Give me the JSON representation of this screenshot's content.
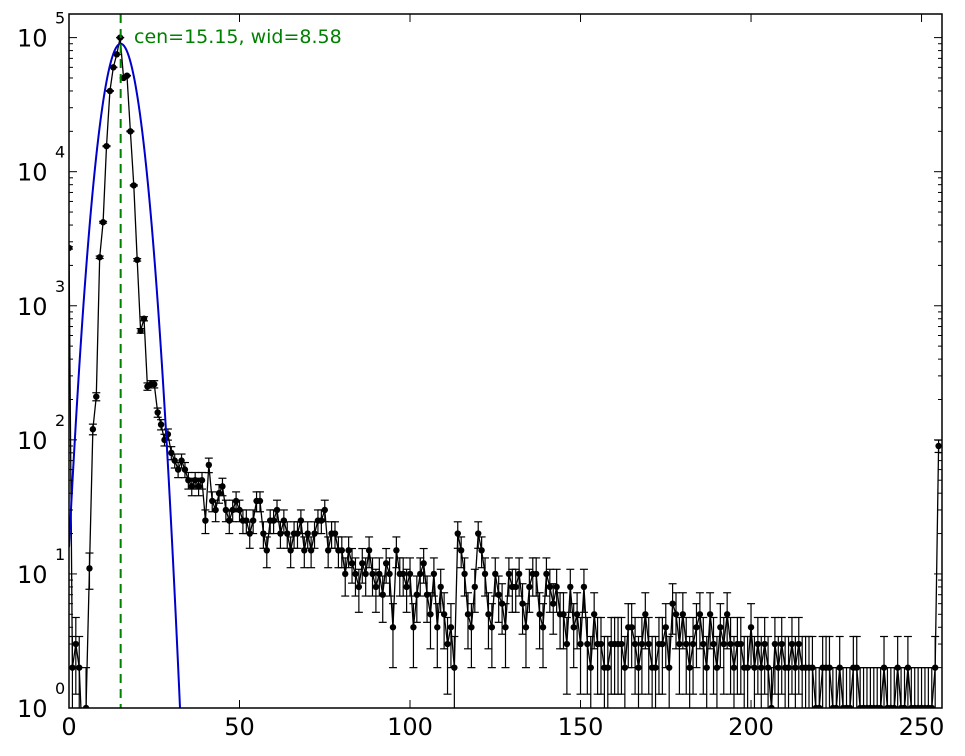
{
  "chart_data": {
    "type": "scatter",
    "title": "",
    "xlabel": "",
    "ylabel": "",
    "xlim": [
      0,
      256
    ],
    "ylim": [
      1,
      150000
    ],
    "y_scale": "log",
    "grid": false,
    "legend": "none",
    "x_ticks": [
      0,
      50,
      100,
      150,
      200,
      250
    ],
    "x_tick_labels": [
      "0",
      "50",
      "100",
      "150",
      "200",
      "250"
    ],
    "y_ticks": [
      1,
      10,
      100,
      1000,
      10000,
      100000
    ],
    "y_tick_labels": [
      {
        "base": "10",
        "exp": "0"
      },
      {
        "base": "10",
        "exp": "1"
      },
      {
        "base": "10",
        "exp": "2"
      },
      {
        "base": "10",
        "exp": "3"
      },
      {
        "base": "10",
        "exp": "4"
      },
      {
        "base": "10",
        "exp": "5"
      }
    ],
    "annotation": {
      "text": "cen=15.15, wid=8.58",
      "color": "#008000"
    },
    "center_line": {
      "x": 15.15,
      "color": "#008000",
      "style": "dashed"
    },
    "series": [
      {
        "kind": "histogram-with-errorbars",
        "color": "#000000",
        "x": [
          0,
          1,
          2,
          3,
          4,
          5,
          6,
          7,
          8,
          9,
          10,
          11,
          12,
          13,
          14,
          15,
          16,
          17,
          18,
          19,
          20,
          21,
          22,
          23,
          24,
          25,
          26,
          27,
          28,
          29,
          30,
          31,
          32,
          33,
          34,
          35,
          36,
          37,
          38,
          39,
          40,
          41,
          42,
          43,
          44,
          45,
          46,
          47,
          48,
          49,
          50,
          51,
          52,
          53,
          54,
          55,
          56,
          57,
          58,
          59,
          60,
          61,
          62,
          63,
          64,
          65,
          66,
          67,
          68,
          69,
          70,
          71,
          72,
          73,
          74,
          75,
          76,
          77,
          78,
          79,
          80,
          81,
          82,
          83,
          84,
          85,
          86,
          87,
          88,
          89,
          90,
          91,
          92,
          93,
          94,
          95,
          96,
          97,
          98,
          99,
          100,
          101,
          102,
          103,
          104,
          105,
          106,
          107,
          108,
          109,
          110,
          111,
          112,
          113,
          114,
          115,
          116,
          117,
          118,
          119,
          120,
          121,
          122,
          123,
          124,
          125,
          126,
          127,
          128,
          129,
          130,
          131,
          132,
          133,
          134,
          135,
          136,
          137,
          138,
          139,
          140,
          141,
          142,
          143,
          144,
          145,
          146,
          147,
          148,
          149,
          150,
          151,
          152,
          153,
          154,
          155,
          156,
          157,
          158,
          159,
          160,
          161,
          162,
          163,
          164,
          165,
          166,
          167,
          168,
          169,
          170,
          171,
          172,
          173,
          174,
          175,
          176,
          177,
          178,
          179,
          180,
          181,
          182,
          183,
          184,
          185,
          186,
          187,
          188,
          189,
          190,
          191,
          192,
          193,
          194,
          195,
          196,
          197,
          198,
          199,
          200,
          201,
          202,
          203,
          204,
          205,
          206,
          207,
          208,
          209,
          210,
          211,
          212,
          213,
          214,
          215,
          216,
          217,
          218,
          219,
          220,
          221,
          222,
          223,
          224,
          225,
          226,
          227,
          228,
          229,
          230,
          231,
          232,
          233,
          234,
          235,
          236,
          237,
          238,
          239,
          240,
          241,
          242,
          243,
          244,
          245,
          246,
          247,
          248,
          249,
          250,
          251,
          252,
          253,
          254,
          255
        ],
        "y": [
          2700,
          2,
          3,
          2,
          0,
          1,
          11,
          120,
          210,
          2300,
          4200,
          15500,
          40000,
          60000,
          75000,
          100000,
          50000,
          52000,
          20000,
          7900,
          2200,
          650,
          800,
          250,
          260,
          260,
          160,
          130,
          100,
          110,
          80,
          70,
          60,
          70,
          60,
          50,
          45,
          50,
          45,
          50,
          25,
          65,
          35,
          30,
          40,
          45,
          30,
          25,
          30,
          35,
          30,
          25,
          25,
          20,
          25,
          35,
          35,
          20,
          15,
          25,
          25,
          30,
          20,
          25,
          20,
          15,
          20,
          20,
          25,
          15,
          20,
          15,
          20,
          25,
          25,
          30,
          15,
          20,
          20,
          15,
          15,
          10,
          15,
          12,
          10,
          8,
          12,
          10,
          15,
          10,
          8,
          10,
          7,
          12,
          10,
          4,
          15,
          10,
          10,
          8,
          10,
          4,
          7,
          10,
          12,
          7,
          5,
          10,
          4,
          8,
          5,
          3,
          4,
          2,
          20,
          15,
          10,
          5,
          4,
          8,
          20,
          15,
          10,
          5,
          4,
          10,
          7,
          6,
          4,
          10,
          8,
          8,
          10,
          6,
          4,
          8,
          10,
          10,
          5,
          4,
          10,
          8,
          6,
          8,
          5,
          5,
          3,
          8,
          4,
          5,
          3,
          8,
          3,
          2,
          5,
          3,
          3,
          2,
          2,
          3,
          3,
          3,
          3,
          2,
          4,
          4,
          3,
          2,
          3,
          5,
          3,
          2,
          2,
          3,
          3,
          4,
          2,
          6,
          5,
          3,
          5,
          3,
          2,
          3,
          4,
          5,
          3,
          2,
          5,
          3,
          2,
          4,
          3,
          5,
          3,
          2,
          3,
          3,
          2,
          2,
          4,
          2,
          3,
          2,
          3,
          2,
          1,
          3,
          2,
          3,
          2,
          2,
          3,
          2,
          3,
          2,
          2,
          2,
          2,
          1,
          1,
          2,
          2,
          2,
          1,
          1,
          2,
          1,
          1,
          1,
          2,
          2,
          1,
          1,
          1,
          1,
          1,
          1,
          1,
          2,
          1,
          1,
          1,
          2,
          1,
          1,
          2,
          1,
          1,
          1,
          1,
          1,
          1,
          1,
          2,
          90
        ]
      },
      {
        "kind": "gaussian-fit",
        "color": "#0000cc",
        "amplitude": 90000,
        "center": 15.15,
        "fwhm": 8.58
      }
    ]
  }
}
